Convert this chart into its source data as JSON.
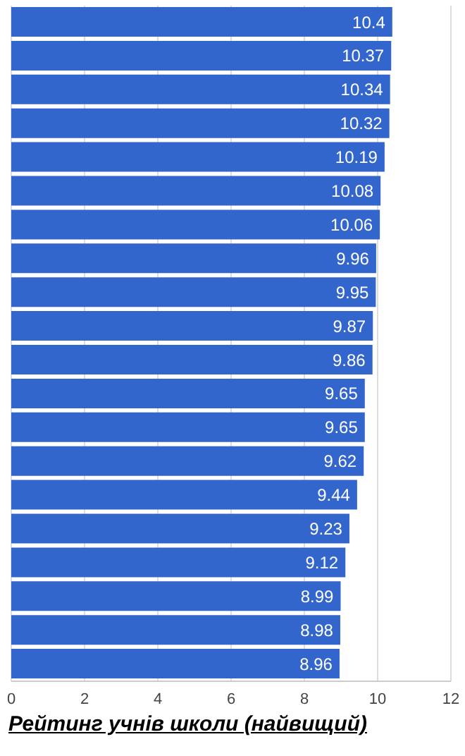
{
  "chart_data": {
    "type": "bar",
    "orientation": "horizontal",
    "xlabel": "Рейтинг учнів школи (найвищий)",
    "categories": [
      null,
      null,
      null,
      null,
      null,
      null,
      null,
      null,
      null,
      null,
      null,
      null,
      null,
      null,
      null,
      null,
      null,
      null,
      null,
      null
    ],
    "values": [
      10.4,
      10.37,
      10.34,
      10.32,
      10.19,
      10.08,
      10.06,
      9.96,
      9.95,
      9.87,
      9.86,
      9.65,
      9.65,
      9.62,
      9.44,
      9.23,
      9.12,
      8.99,
      8.98,
      8.96
    ],
    "color": "#3366cc",
    "xlim": [
      0,
      12
    ],
    "xticks": [
      0,
      2,
      4,
      6,
      8,
      10,
      12
    ],
    "grid": "x",
    "data_labels": true
  }
}
